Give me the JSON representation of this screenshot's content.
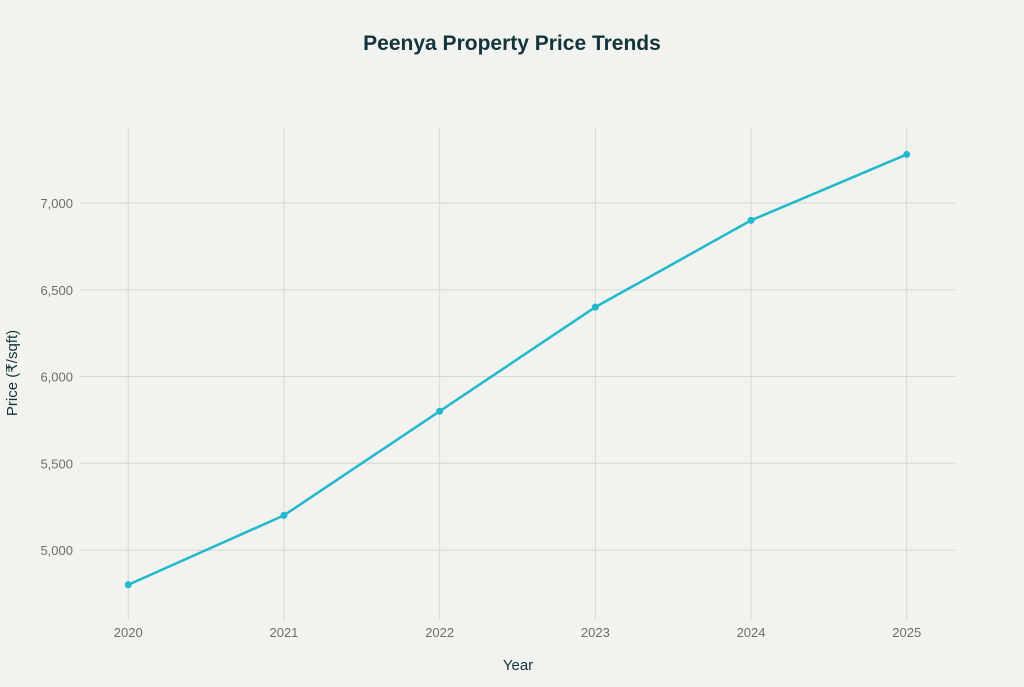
{
  "chart_data": {
    "type": "line",
    "title": "Peenya Property Price Trends",
    "xlabel": "Year",
    "ylabel": "Price (₹/sqft)",
    "categories": [
      "2020",
      "2021",
      "2022",
      "2023",
      "2024",
      "2025"
    ],
    "x": [
      2020,
      2021,
      2022,
      2023,
      2024,
      2025
    ],
    "values": [
      4800,
      5200,
      5800,
      6400,
      6900,
      7280
    ],
    "yticks": [
      5000,
      5500,
      6000,
      6500,
      7000
    ],
    "ytick_labels": [
      "5,000",
      "5,500",
      "6,000",
      "6,500",
      "7,000"
    ],
    "xlim": [
      2019.69,
      2025.31
    ],
    "ylim": [
      4597,
      7438
    ],
    "grid": true,
    "line_color": "#1fb8cd",
    "markers": true
  }
}
